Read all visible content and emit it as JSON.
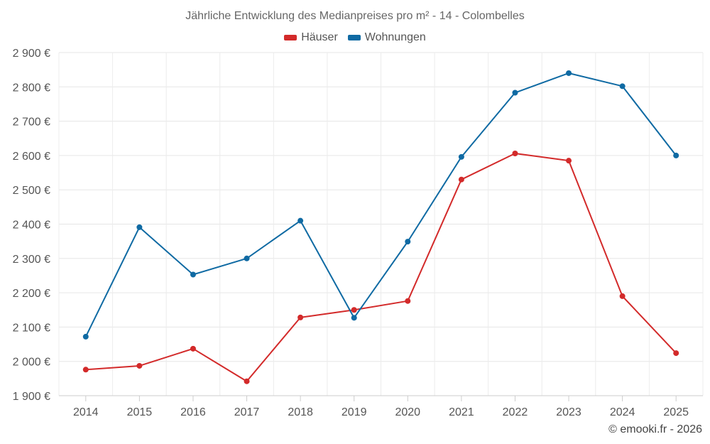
{
  "chart_data": {
    "type": "line",
    "title": "Jährliche Entwicklung des Medianpreises pro m² - 14 - Colombelles",
    "categories": [
      "2014",
      "2015",
      "2016",
      "2017",
      "2018",
      "2019",
      "2020",
      "2021",
      "2022",
      "2023",
      "2024",
      "2025"
    ],
    "yticks": [
      "1 900 €",
      "2 000 €",
      "2 100 €",
      "2 200 €",
      "2 300 €",
      "2 400 €",
      "2 500 €",
      "2 600 €",
      "2 700 €",
      "2 800 €",
      "2 900 €"
    ],
    "ylim": [
      1900,
      2900
    ],
    "series": [
      {
        "name": "Häuser",
        "color": "#d32a2a",
        "values": [
          1976,
          1987,
          2037,
          1942,
          2128,
          2150,
          2176,
          2530,
          2606,
          2585,
          2190,
          2024
        ]
      },
      {
        "name": "Wohnungen",
        "color": "#0f6aa3",
        "values": [
          2072,
          2391,
          2253,
          2300,
          2410,
          2127,
          2349,
          2596,
          2783,
          2840,
          2802,
          2600
        ]
      }
    ],
    "xlabel": "",
    "ylabel": "",
    "grid": true,
    "legend_position": "top-center"
  },
  "footer": {
    "credit": "© emooki.fr - 2026"
  }
}
